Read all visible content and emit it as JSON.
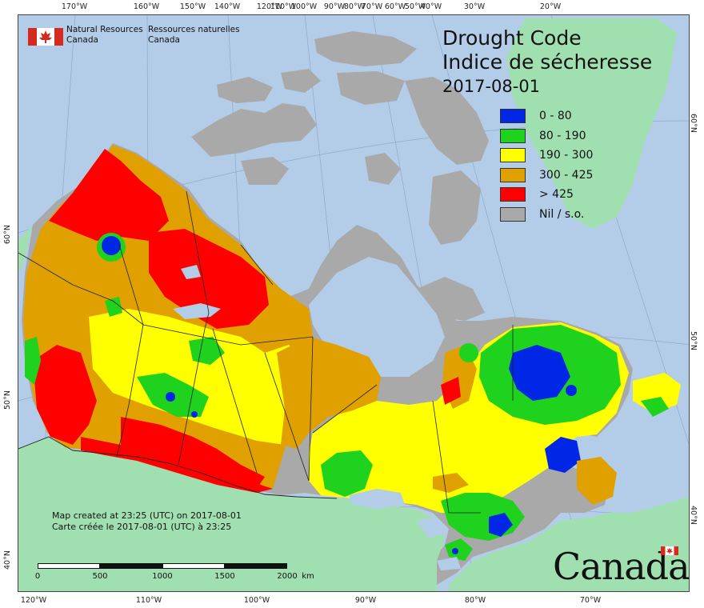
{
  "agency": {
    "en_line1": "Natural Resources",
    "en_line2": "Canada",
    "fr_line1": "Ressources naturelles",
    "fr_line2": "Canada"
  },
  "title": {
    "line1": "Drought Code",
    "line2": "Indice de sécheresse",
    "date": "2017-08-01"
  },
  "legend": [
    {
      "label": "0 - 80",
      "color": "#0026e6"
    },
    {
      "label": "80 - 190",
      "color": "#1ed21e"
    },
    {
      "label": "190 - 300",
      "color": "#ffff00"
    },
    {
      "label": "300 - 425",
      "color": "#e0a000"
    },
    {
      "label": "> 425",
      "color": "#ff0000"
    },
    {
      "label": "Nil / s.o.",
      "color": "#a9a9a9"
    }
  ],
  "longitude_top": [
    "170°W",
    "160°W",
    "150°W",
    "140°W",
    "120°W",
    "110°W",
    "100°W",
    "90°W",
    "80°W",
    "70°W",
    "60°W",
    "50°W",
    "40°W",
    "30°W",
    "20°W"
  ],
  "longitude_bottom": [
    "120°W",
    "110°W",
    "100°W",
    "90°W",
    "80°W",
    "70°W"
  ],
  "latitude_left": [
    "60°N",
    "50°N",
    "40°N"
  ],
  "latitude_right": [
    "60°N",
    "50°N",
    "40°N"
  ],
  "credit": {
    "en": "Map created at 23:25 (UTC) on 2017-08-01",
    "fr": "Carte créée le 2017-08-01 (UTC) à 23:25"
  },
  "scale": {
    "ticks": [
      "0",
      "500",
      "1000",
      "1500",
      "2000"
    ],
    "unit": "km"
  },
  "wordmark": "Canada",
  "colors": {
    "ocean": "#b3cde8",
    "usa_land": "#a0e0b0",
    "nil": "#a9a9a9"
  }
}
